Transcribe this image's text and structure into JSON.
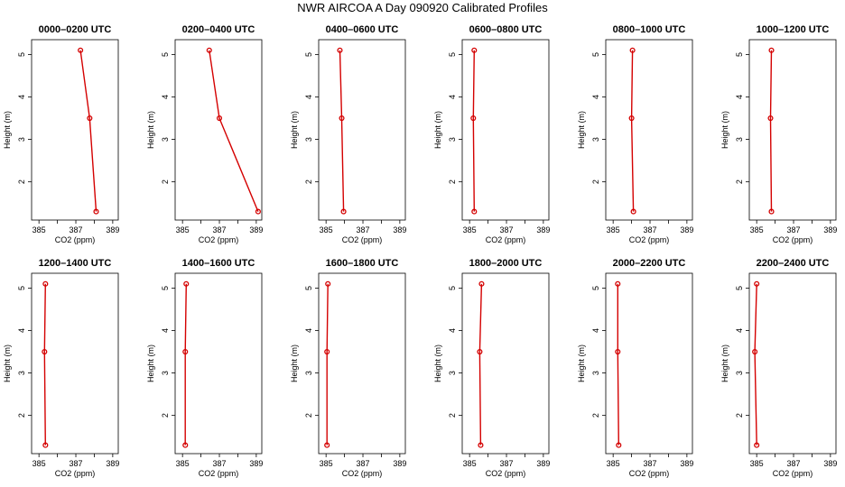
{
  "figure_title": "NWR AIRCOA A  Day 090920  Calibrated Profiles",
  "colors": {
    "line": "#d40000",
    "axis": "#000000",
    "background": "#ffffff"
  },
  "chart_data": {
    "type": "line",
    "layout": "2x6 small multiples",
    "title": "NWR AIRCOA A  Day 090920  Calibrated Profiles",
    "xlabel": "CO2 (ppm)",
    "ylabel": "Height (m)",
    "xlim": [
      384.6,
      389.3
    ],
    "ylim": [
      1.1,
      5.35
    ],
    "xticks": [
      385,
      386,
      387,
      388,
      389
    ],
    "xtick_labels": [
      "385",
      "387",
      "389"
    ],
    "yticks": [
      2,
      3,
      4,
      5
    ],
    "heights": [
      1.3,
      3.5,
      5.1
    ],
    "panels": [
      {
        "title": "0000–0200 UTC",
        "co2": [
          388.1,
          387.75,
          387.25
        ]
      },
      {
        "title": "0200–0400 UTC",
        "co2": [
          389.1,
          387.0,
          386.45
        ]
      },
      {
        "title": "0400–0600 UTC",
        "co2": [
          385.95,
          385.85,
          385.75
        ]
      },
      {
        "title": "0600–0800 UTC",
        "co2": [
          385.25,
          385.2,
          385.25
        ]
      },
      {
        "title": "0800–1000 UTC",
        "co2": [
          386.1,
          386.0,
          386.05
        ]
      },
      {
        "title": "1000–1200 UTC",
        "co2": [
          385.8,
          385.75,
          385.8
        ]
      },
      {
        "title": "1200–1400 UTC",
        "co2": [
          385.35,
          385.3,
          385.35
        ]
      },
      {
        "title": "1400–1600 UTC",
        "co2": [
          385.15,
          385.15,
          385.2
        ]
      },
      {
        "title": "1600–1800 UTC",
        "co2": [
          385.05,
          385.05,
          385.1
        ]
      },
      {
        "title": "1800–2000 UTC",
        "co2": [
          385.6,
          385.55,
          385.65
        ]
      },
      {
        "title": "2000–2200 UTC",
        "co2": [
          385.3,
          385.25,
          385.25
        ]
      },
      {
        "title": "2200–2400 UTC",
        "co2": [
          385.0,
          384.9,
          385.0
        ]
      }
    ]
  }
}
